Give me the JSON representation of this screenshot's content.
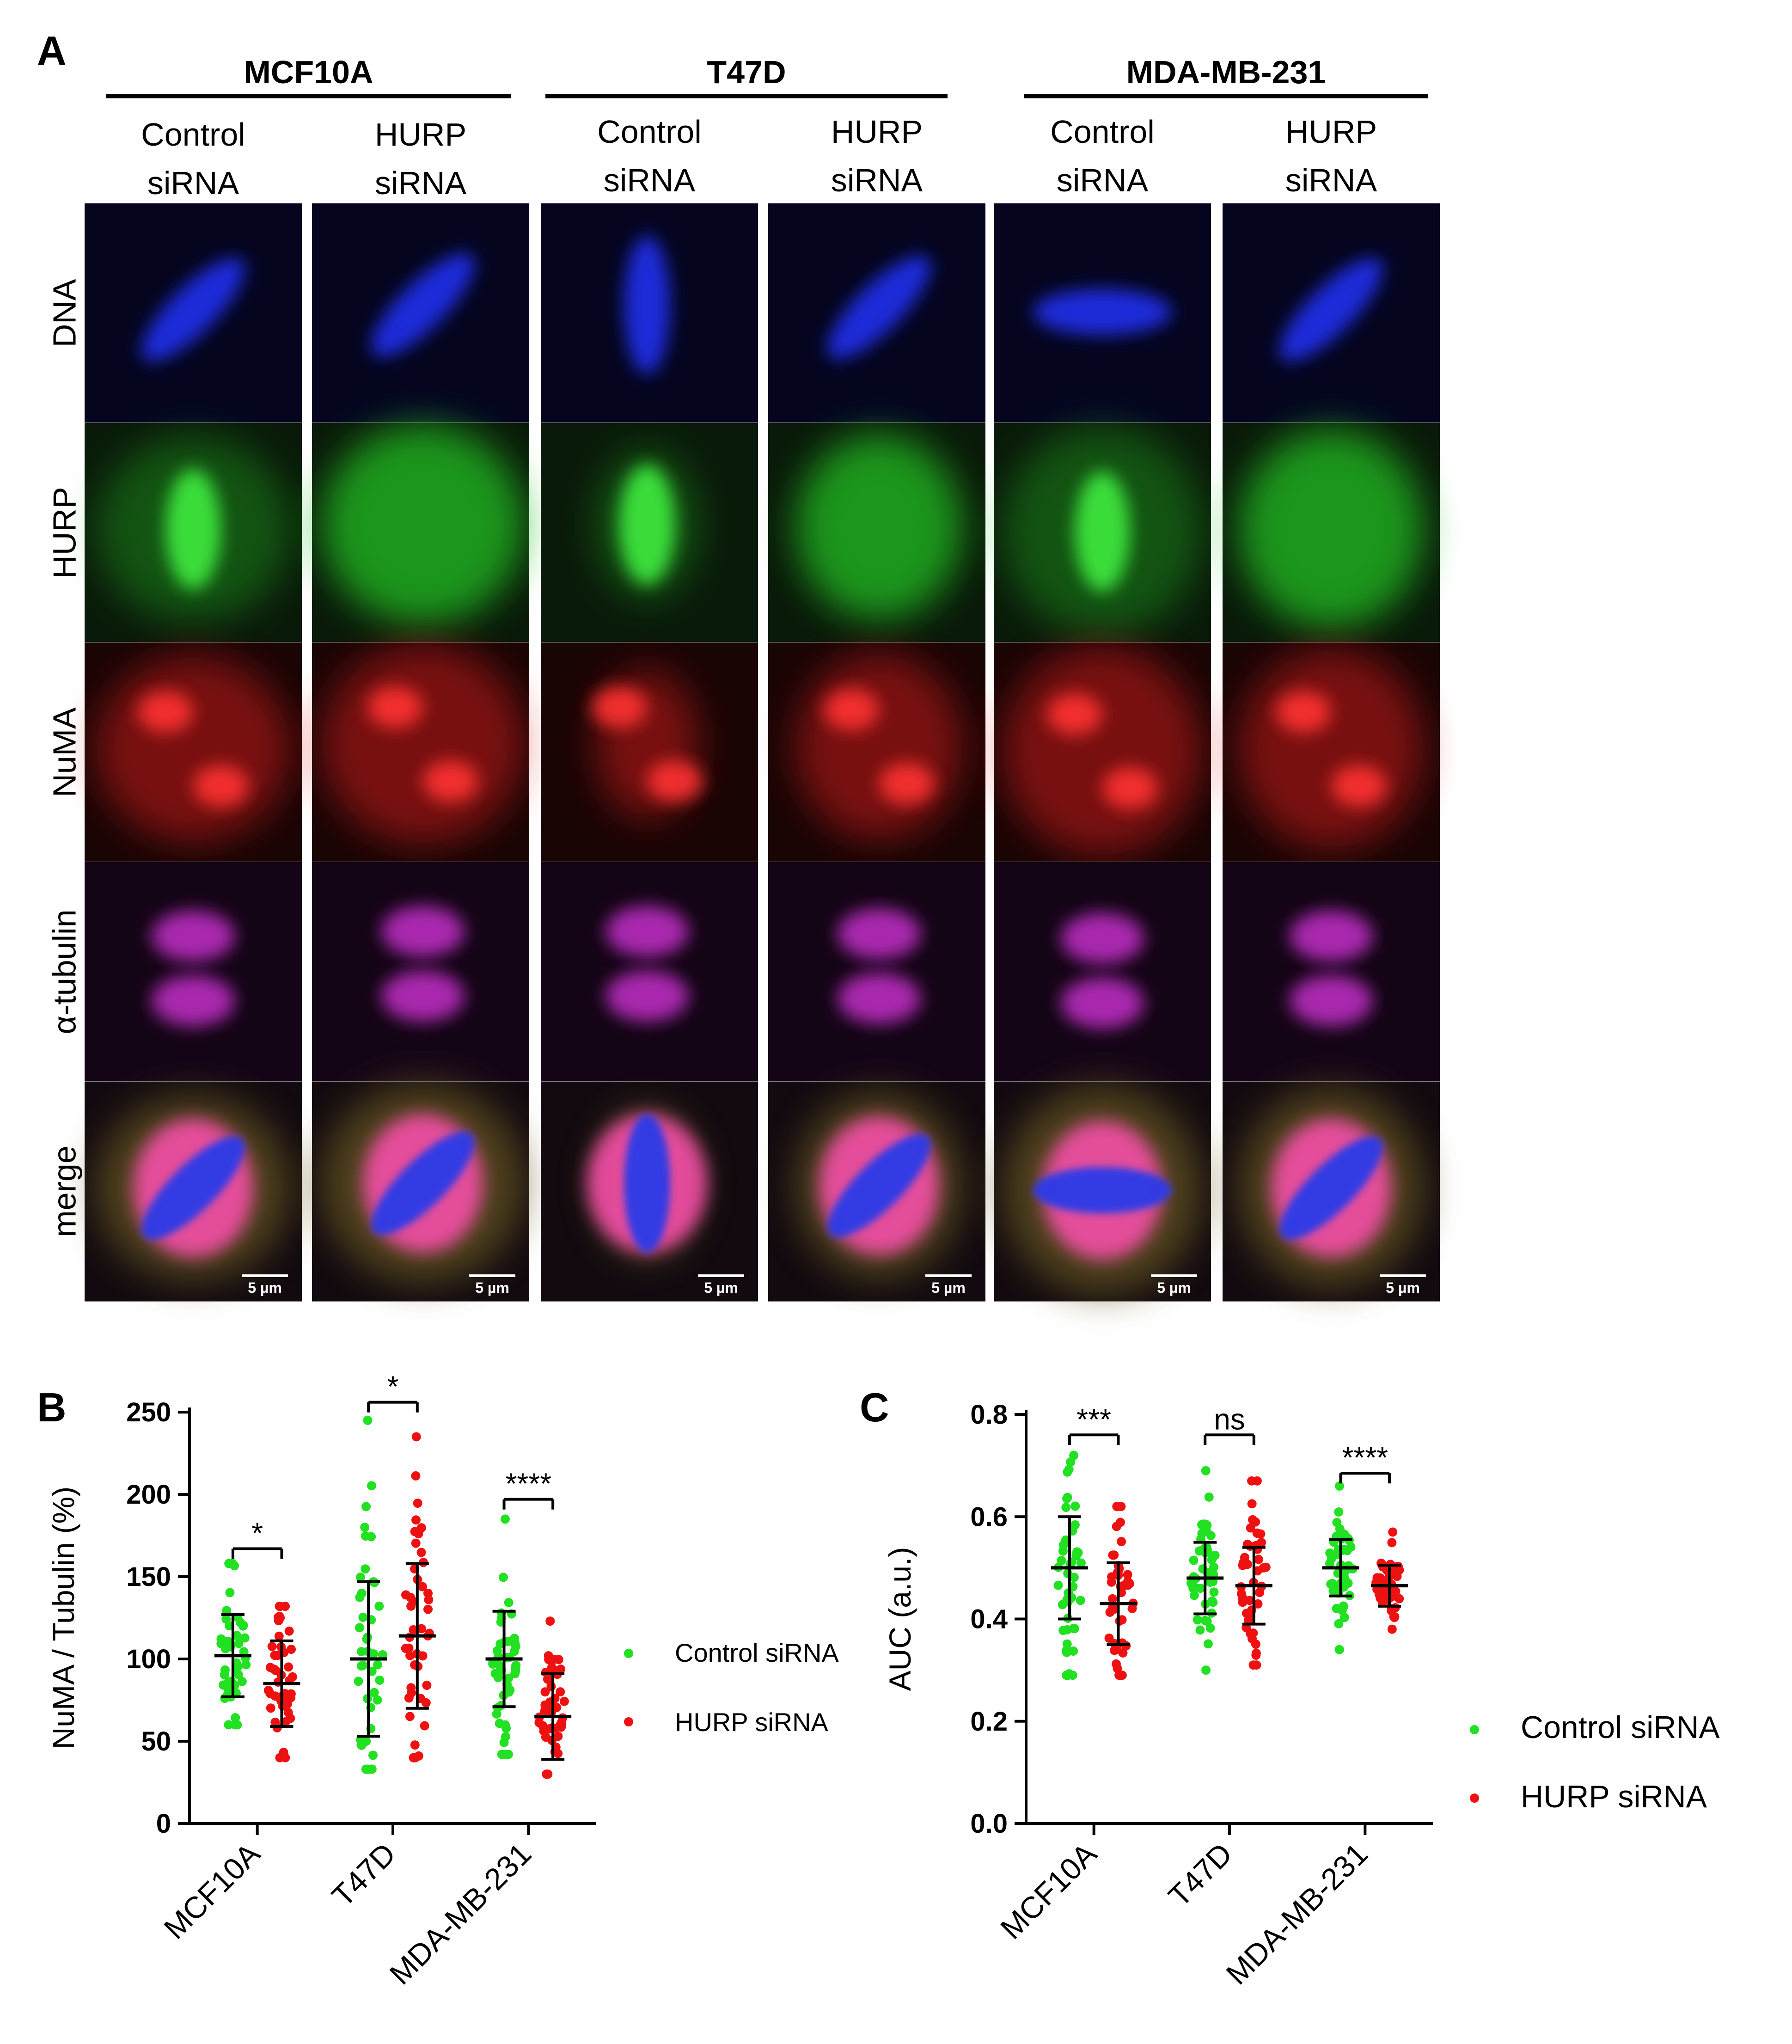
{
  "panels": {
    "a": "A",
    "b": "B",
    "c": "C"
  },
  "groups": [
    {
      "name": "MCF10A",
      "conditions": [
        "Control\nsiRNA",
        "HURP\nsiRNA"
      ]
    },
    {
      "name": "T47D",
      "conditions": [
        "Control\nsiRNA",
        "HURP\nsiRNA"
      ]
    },
    {
      "name": "MDA-MB-231",
      "conditions": [
        "Control\nsiRNA",
        "HURP\nsiRNA"
      ]
    }
  ],
  "condition_lines": {
    "control_1": "Control",
    "control_2": "siRNA",
    "hurp_1": "HURP",
    "hurp_2": "siRNA"
  },
  "rows": [
    "DNA",
    "HURP",
    "NuMA",
    "α-tubulin",
    "merge"
  ],
  "row_colors": {
    "DNA": "#1e2bd8",
    "HURP": "#22c022",
    "NuMA": "#d81a1a",
    "α-tubulin": "#c32fc9",
    "merge": "#c05040"
  },
  "scale_bar": "5 µm",
  "legend": {
    "control": "Control siRNA",
    "hurp": "HURP siRNA",
    "control_color": "#22e022",
    "hurp_color": "#ee1111"
  },
  "chart_data": [
    {
      "panel": "B",
      "type": "scatter",
      "ylabel": "NuMA / Tubulin (%)",
      "xlabel": "",
      "ylim": [
        0,
        250
      ],
      "yticks": [
        "0",
        "50",
        "100",
        "150",
        "200",
        "250"
      ],
      "categories": [
        "MCF10A",
        "T47D",
        "MDA-MB-231"
      ],
      "series": [
        {
          "name": "Control siRNA",
          "mean": [
            102,
            100,
            100
          ],
          "sd": [
            25,
            47,
            29
          ],
          "min": [
            60,
            33,
            42
          ],
          "max": [
            158,
            245,
            185
          ]
        },
        {
          "name": "HURP siRNA",
          "mean": [
            85,
            114,
            65
          ],
          "sd": [
            26,
            44,
            26
          ],
          "min": [
            40,
            40,
            30
          ],
          "max": [
            132,
            235,
            123
          ]
        }
      ],
      "significance": [
        "*",
        "*",
        "****"
      ]
    },
    {
      "panel": "C",
      "type": "scatter",
      "ylabel": "AUC (a.u.)",
      "xlabel": "",
      "ylim": [
        0,
        0.8
      ],
      "yticks": [
        "0.0",
        "0.2",
        "0.4",
        "0.6",
        "0.8"
      ],
      "categories": [
        "MCF10A",
        "T47D",
        "MDA-MB-231"
      ],
      "series": [
        {
          "name": "Control siRNA",
          "mean": [
            0.5,
            0.48,
            0.5
          ],
          "sd": [
            0.1,
            0.07,
            0.055
          ],
          "min": [
            0.29,
            0.3,
            0.34
          ],
          "max": [
            0.72,
            0.69,
            0.66
          ]
        },
        {
          "name": "HURP siRNA",
          "mean": [
            0.43,
            0.465,
            0.465
          ],
          "sd": [
            0.08,
            0.075,
            0.04
          ],
          "min": [
            0.29,
            0.31,
            0.38
          ],
          "max": [
            0.62,
            0.67,
            0.57
          ]
        }
      ],
      "significance": [
        "***",
        "ns",
        "****"
      ]
    }
  ]
}
